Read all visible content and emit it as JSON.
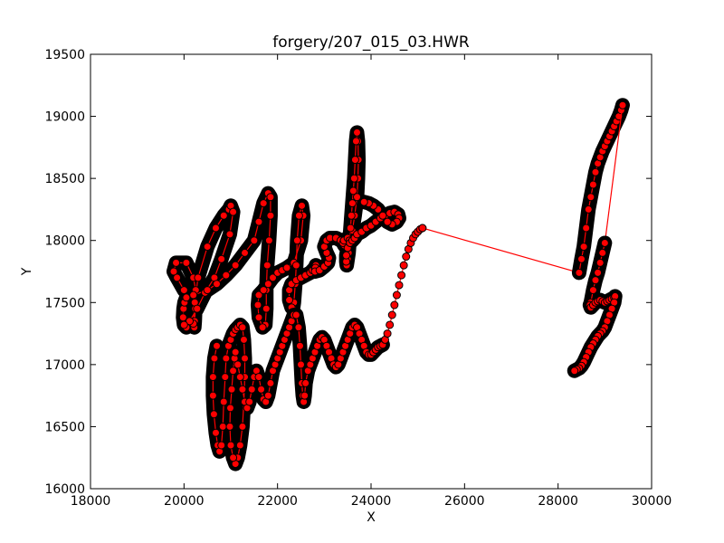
{
  "chart_data": {
    "type": "scatter",
    "title": "forgery/207_015_03.HWR",
    "xlabel": "X",
    "ylabel": "Y",
    "xlim": [
      18000,
      30000
    ],
    "ylim": [
      16000,
      19500
    ],
    "xticks": [
      "18000",
      "20000",
      "22000",
      "24000",
      "26000",
      "28000",
      "30000"
    ],
    "yticks": [
      "16000",
      "16500",
      "17000",
      "17500",
      "18000",
      "18500",
      "19000",
      "19500"
    ],
    "grid": false,
    "legend": "none",
    "colors": {
      "line": "#ff0000",
      "marker_fill": "#ff0000",
      "marker_edge": "#000000"
    },
    "series": [
      {
        "stroke": "pen-down",
        "x": [
          20000,
          19850,
          19780,
          19830,
          20050,
          20200,
          20250,
          20240,
          20230,
          20220,
          20200,
          20230,
          20300,
          20500,
          20680,
          20850,
          20960,
          21000,
          21050,
          20980,
          20800,
          20650,
          20450,
          20280,
          20120,
          20050,
          20000,
          19980,
          19990,
          20010,
          20050,
          20200,
          20500,
          20700,
          20900,
          21100,
          21300,
          21500,
          21600,
          21700,
          21800,
          21850,
          21850,
          21820,
          21780,
          21760,
          21760,
          21740,
          21680,
          21600,
          21580,
          21600,
          21700,
          21800,
          21900,
          22000,
          22100,
          22200,
          22350,
          22500,
          22550,
          22520,
          22460,
          22420,
          22400,
          22380,
          22350,
          22330,
          22300,
          22250,
          22250,
          22300,
          22400,
          22500,
          22600,
          22700,
          22750,
          22800,
          22820,
          22810,
          22800,
          22900,
          23000,
          23080,
          23100,
          23050,
          23000,
          23050,
          23120,
          23250,
          23350,
          23420,
          23450,
          23430,
          23400,
          23420,
          23500,
          23600,
          23650,
          23700,
          23720,
          23730,
          23720,
          23700,
          23680,
          23660,
          23640,
          23620,
          23600,
          23580,
          23560,
          23540,
          23520,
          23500,
          23480,
          23470,
          23470,
          23500,
          23550,
          23600,
          23650,
          23700,
          23800,
          23900,
          24000,
          24100,
          24200,
          24300,
          24400,
          24500,
          24580,
          24600,
          24550,
          24450,
          24350,
          24250,
          24150,
          24050,
          23950,
          23850
        ],
        "y": [
          17600,
          17700,
          17750,
          17820,
          17820,
          17700,
          17600,
          17450,
          17350,
          17300,
          17330,
          17500,
          17700,
          17950,
          18100,
          18200,
          18250,
          18280,
          18230,
          18050,
          17850,
          17700,
          17580,
          17450,
          17350,
          17300,
          17320,
          17380,
          17450,
          17500,
          17540,
          17560,
          17600,
          17650,
          17720,
          17800,
          17900,
          18000,
          18150,
          18300,
          18380,
          18350,
          18200,
          18000,
          17800,
          17600,
          17450,
          17320,
          17300,
          17380,
          17480,
          17560,
          17600,
          17650,
          17700,
          17740,
          17760,
          17780,
          17820,
          18000,
          18200,
          18280,
          18200,
          18000,
          17800,
          17650,
          17500,
          17450,
          17460,
          17520,
          17600,
          17650,
          17680,
          17700,
          17720,
          17740,
          17760,
          17780,
          17800,
          17780,
          17750,
          17760,
          17790,
          17820,
          17860,
          17900,
          17950,
          18000,
          18020,
          18020,
          18000,
          17980,
          17960,
          17960,
          17980,
          18000,
          18020,
          18080,
          18200,
          18350,
          18500,
          18650,
          18800,
          18870,
          18800,
          18650,
          18500,
          18400,
          18300,
          18200,
          18100,
          18000,
          17900,
          17850,
          17800,
          17830,
          17880,
          17940,
          17980,
          18000,
          18020,
          18050,
          18070,
          18100,
          18120,
          18150,
          18180,
          18200,
          18220,
          18230,
          18210,
          18180,
          18150,
          18130,
          18150,
          18200,
          18250,
          18280,
          18300,
          18310
        ]
      },
      {
        "stroke": "pen-down",
        "x": [
          20700,
          20650,
          20620,
          20620,
          20640,
          20680,
          20720,
          20760,
          20800,
          20830,
          20850,
          20880,
          20900,
          20950,
          21000,
          21050,
          21100,
          21150,
          21200,
          21250,
          21280,
          21300,
          21300,
          21280,
          21250,
          21200,
          21150,
          21100,
          21050,
          21000,
          20980,
          20990,
          21020,
          21050,
          21080,
          21100,
          21150,
          21200,
          21250,
          21300,
          21350,
          21400,
          21450,
          21500,
          21550,
          21600,
          21650,
          21700,
          21750,
          21800,
          21850,
          21900,
          21950,
          22000,
          22050,
          22100,
          22150,
          22200,
          22250,
          22300,
          22350,
          22400,
          22450,
          22480,
          22500,
          22520,
          22540,
          22560,
          22580,
          22600,
          22650,
          22700,
          22750,
          22800,
          22850,
          22900,
          22950,
          23000,
          23050,
          23100,
          23150,
          23200,
          23250,
          23300,
          23350,
          23400,
          23450,
          23500,
          23550,
          23600,
          23650,
          23700,
          23750,
          23800,
          23850,
          23900,
          23950,
          24000,
          24050,
          24100,
          24150,
          24200,
          24250
        ],
        "y": [
          17150,
          17050,
          16900,
          16750,
          16600,
          16450,
          16350,
          16300,
          16350,
          16500,
          16700,
          16900,
          17050,
          17150,
          17200,
          17250,
          17280,
          17300,
          17320,
          17300,
          17200,
          17050,
          16900,
          16700,
          16500,
          16350,
          16250,
          16200,
          16250,
          16350,
          16500,
          16650,
          16800,
          16950,
          17050,
          17100,
          17000,
          16900,
          16800,
          16700,
          16650,
          16700,
          16800,
          16900,
          16950,
          16900,
          16800,
          16720,
          16700,
          16750,
          16850,
          16950,
          17000,
          17050,
          17100,
          17150,
          17200,
          17250,
          17300,
          17350,
          17400,
          17400,
          17300,
          17150,
          17000,
          16850,
          16750,
          16700,
          16750,
          16850,
          16950,
          17000,
          17050,
          17100,
          17150,
          17200,
          17220,
          17200,
          17150,
          17100,
          17050,
          17000,
          16980,
          17000,
          17050,
          17100,
          17150,
          17200,
          17250,
          17300,
          17320,
          17300,
          17250,
          17200,
          17150,
          17100,
          17080,
          17080,
          17100,
          17120,
          17140,
          17150,
          17160
        ]
      },
      {
        "stroke": "pen-up",
        "x": [
          24250,
          24300,
          24350,
          24400,
          24450,
          24500,
          24550,
          24600,
          24650,
          24700,
          24750,
          24800,
          24850,
          24900,
          24950,
          25000,
          25050,
          25100
        ],
        "y": [
          17160,
          17200,
          17250,
          17320,
          17400,
          17480,
          17560,
          17640,
          17720,
          17800,
          17870,
          17930,
          17980,
          18020,
          18050,
          18070,
          18090,
          18100
        ]
      },
      {
        "stroke": "pen-up",
        "x": [
          25100,
          28450
        ],
        "y": [
          18100,
          17740
        ]
      },
      {
        "stroke": "pen-down",
        "x": [
          28450,
          28500,
          28550,
          28600,
          28650,
          28700,
          28750,
          28800,
          28850,
          28900,
          28950,
          29000,
          29050,
          29100,
          29150,
          29200,
          29250,
          29300,
          29350,
          29380
        ],
        "y": [
          17740,
          17850,
          17950,
          18100,
          18250,
          18350,
          18450,
          18550,
          18620,
          18670,
          18720,
          18760,
          18800,
          18840,
          18880,
          18920,
          18960,
          19000,
          19050,
          19090
        ]
      },
      {
        "stroke": "pen-up",
        "x": [
          29380,
          29000
        ],
        "y": [
          19090,
          17980
        ]
      },
      {
        "stroke": "pen-down",
        "x": [
          29000,
          28950,
          28900,
          28850,
          28800,
          28750,
          28700,
          28680,
          28700,
          28750,
          28800,
          28850,
          28900,
          28950,
          29000,
          29050,
          29100,
          29150,
          29200,
          29220,
          29200,
          29150,
          29100,
          29050,
          29000,
          28950,
          28900,
          28850,
          28800,
          28750,
          28700,
          28650,
          28600,
          28550,
          28500,
          28450,
          28400,
          28350
        ],
        "y": [
          17980,
          17900,
          17820,
          17740,
          17680,
          17600,
          17500,
          17480,
          17460,
          17480,
          17500,
          17510,
          17520,
          17510,
          17500,
          17510,
          17520,
          17530,
          17540,
          17550,
          17500,
          17450,
          17400,
          17350,
          17300,
          17270,
          17250,
          17230,
          17200,
          17170,
          17140,
          17100,
          17060,
          17020,
          16990,
          16970,
          16960,
          16950
        ]
      }
    ]
  }
}
